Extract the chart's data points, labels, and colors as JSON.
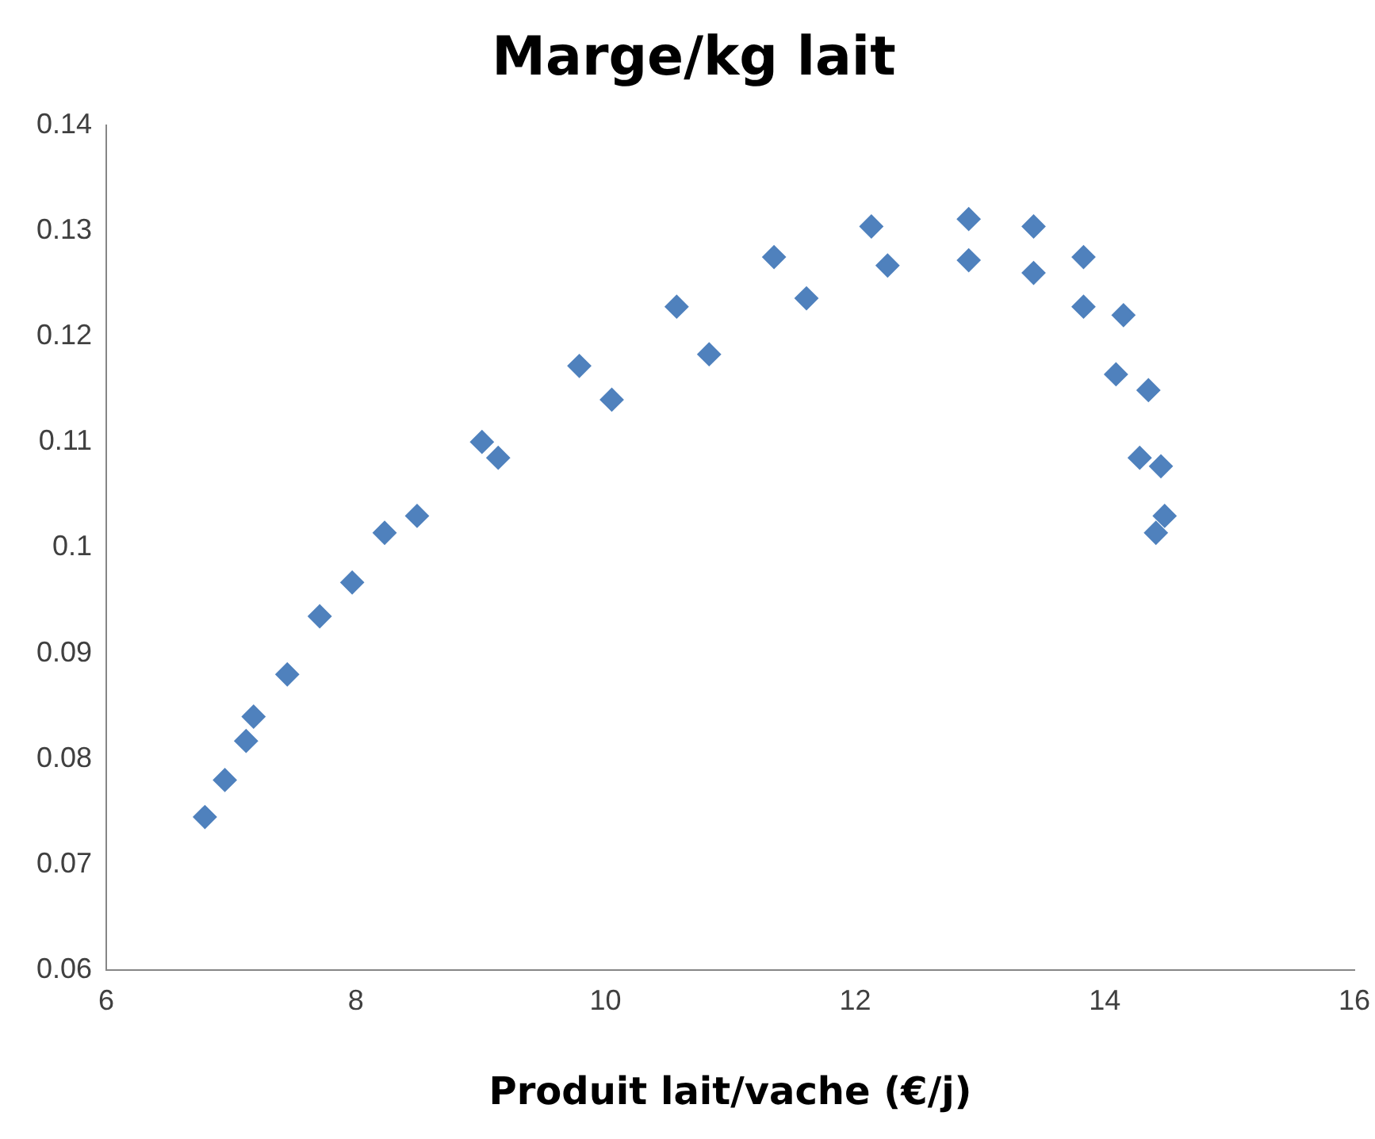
{
  "chart_data": {
    "type": "scatter",
    "title": "Marge/kg lait",
    "xlabel": "Produit lait/vache (€/j)",
    "xlim": [
      6,
      16
    ],
    "xticks": [
      6,
      8,
      10,
      12,
      14,
      16
    ],
    "ylim": [
      0.06,
      0.14
    ],
    "yticks": [
      0.06,
      0.07,
      0.08,
      0.09,
      0.1,
      0.11,
      0.12,
      0.13,
      0.14
    ],
    "grid": false,
    "legend": false,
    "marker": "diamond",
    "series": [
      {
        "color": "#4f81bd",
        "x": [
          6.79,
          6.95,
          7.12,
          7.45,
          7.97,
          8.49,
          9.14,
          10.05,
          10.83,
          11.61,
          12.26,
          12.91,
          13.43,
          13.83,
          14.09,
          14.28,
          14.41,
          7.18,
          7.71,
          8.23,
          9.01,
          9.79,
          10.57,
          11.35,
          12.13,
          12.91,
          13.43,
          13.83,
          14.15,
          14.35,
          14.45,
          14.48
        ],
        "values": [
          0.0745,
          0.078,
          0.0817,
          0.088,
          0.0967,
          0.103,
          0.1085,
          0.114,
          0.1183,
          0.1236,
          0.1267,
          0.1272,
          0.126,
          0.1228,
          0.1164,
          0.1085,
          0.1014,
          0.084,
          0.0935,
          0.1014,
          0.11,
          0.1172,
          0.1228,
          0.1275,
          0.1304,
          0.1311,
          0.1304,
          0.1275,
          0.122,
          0.1149,
          0.1077,
          0.103
        ]
      }
    ]
  }
}
